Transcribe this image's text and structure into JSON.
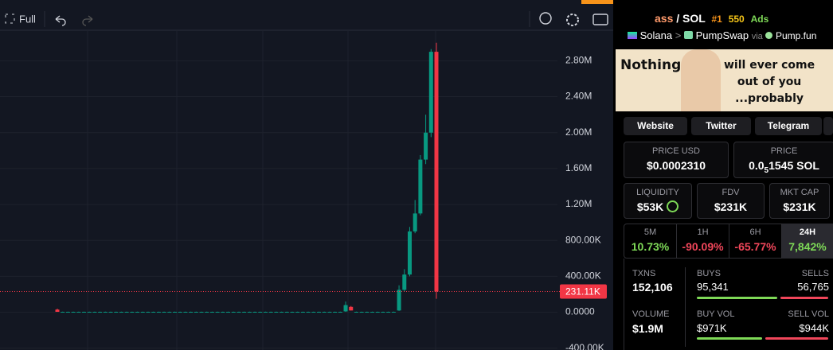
{
  "toolbar": {
    "full": "Full"
  },
  "chart_data": {
    "type": "candlestick",
    "ylim": [
      -420000,
      3140000
    ],
    "yticks": [
      {
        "value": 2800000,
        "label": "2.80M"
      },
      {
        "value": 2400000,
        "label": "2.40M"
      },
      {
        "value": 2000000,
        "label": "2.00M"
      },
      {
        "value": 1600000,
        "label": "1.60M"
      },
      {
        "value": 1200000,
        "label": "1.20M"
      },
      {
        "value": 800000,
        "label": "800.00K"
      },
      {
        "value": 400000,
        "label": "400.00K"
      },
      {
        "value": 0,
        "label": "0.0000"
      },
      {
        "value": -400000,
        "label": "-400.00K"
      }
    ],
    "up_color": "#089981",
    "down_color": "#f23645",
    "last_price": {
      "value": 231110,
      "label": "231.11K"
    },
    "candles": [
      [
        30000,
        40000,
        5000,
        5000
      ],
      [
        5000,
        7000,
        3000,
        5000
      ],
      [
        5000,
        7000,
        3000,
        5000
      ],
      [
        5000,
        7000,
        3000,
        5000
      ],
      [
        5000,
        7000,
        3000,
        5000
      ],
      [
        5000,
        7000,
        3000,
        5000
      ],
      [
        5000,
        7000,
        3000,
        5000
      ],
      [
        5000,
        7000,
        3000,
        5000
      ],
      [
        5000,
        7000,
        3000,
        5000
      ],
      [
        5000,
        7000,
        3000,
        5000
      ],
      [
        5000,
        7000,
        3000,
        5000
      ],
      [
        5000,
        7000,
        3000,
        5000
      ],
      [
        5000,
        7000,
        3000,
        5000
      ],
      [
        5000,
        7000,
        3000,
        5000
      ],
      [
        5000,
        7000,
        3000,
        5000
      ],
      [
        5000,
        7000,
        3000,
        5000
      ],
      [
        5000,
        7000,
        3000,
        5000
      ],
      [
        5000,
        7000,
        3000,
        5000
      ],
      [
        5000,
        7000,
        3000,
        5000
      ],
      [
        5000,
        7000,
        3000,
        5000
      ],
      [
        5000,
        7000,
        3000,
        5000
      ],
      [
        5000,
        7000,
        3000,
        5000
      ],
      [
        5000,
        7000,
        3000,
        5000
      ],
      [
        5000,
        7000,
        3000,
        5000
      ],
      [
        5000,
        7000,
        3000,
        5000
      ],
      [
        5000,
        7000,
        3000,
        5000
      ],
      [
        5000,
        7000,
        3000,
        5000
      ],
      [
        5000,
        7000,
        3000,
        5000
      ],
      [
        5000,
        7000,
        3000,
        5000
      ],
      [
        5000,
        7000,
        3000,
        5000
      ],
      [
        5000,
        7000,
        3000,
        5000
      ],
      [
        5000,
        7000,
        3000,
        5000
      ],
      [
        5000,
        7000,
        3000,
        5000
      ],
      [
        5000,
        7000,
        3000,
        5000
      ],
      [
        5000,
        7000,
        3000,
        5000
      ],
      [
        5000,
        7000,
        3000,
        5000
      ],
      [
        5000,
        7000,
        3000,
        5000
      ],
      [
        5000,
        7000,
        3000,
        5000
      ],
      [
        5000,
        7000,
        3000,
        5000
      ],
      [
        5000,
        7000,
        3000,
        5000
      ],
      [
        5000,
        7000,
        3000,
        5000
      ],
      [
        5000,
        7000,
        3000,
        5000
      ],
      [
        5000,
        7000,
        3000,
        5000
      ],
      [
        5000,
        7000,
        3000,
        5000
      ],
      [
        5000,
        7000,
        3000,
        5000
      ],
      [
        5000,
        7000,
        3000,
        5000
      ],
      [
        5000,
        7000,
        3000,
        5000
      ],
      [
        5000,
        7000,
        3000,
        5000
      ],
      [
        5000,
        7000,
        3000,
        5000
      ],
      [
        5000,
        7000,
        3000,
        5000
      ],
      [
        5000,
        7000,
        3000,
        5000
      ],
      [
        5000,
        7000,
        3000,
        5000
      ],
      [
        5000,
        7000,
        3000,
        5000
      ],
      [
        5000,
        7000,
        3000,
        5000
      ],
      [
        10000,
        120000,
        5000,
        80000
      ],
      [
        60000,
        70000,
        20000,
        20000
      ],
      [
        5000,
        7000,
        3000,
        5000
      ],
      [
        5000,
        7000,
        3000,
        5000
      ],
      [
        5000,
        7000,
        3000,
        5000
      ],
      [
        5000,
        7000,
        3000,
        5000
      ],
      [
        5000,
        7000,
        3000,
        5000
      ],
      [
        5000,
        7000,
        3000,
        5000
      ],
      [
        5000,
        7000,
        3000,
        5000
      ],
      [
        5000,
        7000,
        3000,
        5000
      ],
      [
        20000,
        300000,
        15000,
        250000
      ],
      [
        250000,
        480000,
        230000,
        420000
      ],
      [
        420000,
        950000,
        400000,
        900000
      ],
      [
        900000,
        1250000,
        880000,
        1100000
      ],
      [
        1100000,
        1750000,
        1080000,
        1700000
      ],
      [
        1700000,
        2200000,
        1650000,
        2000000
      ],
      [
        2000000,
        2930000,
        1950000,
        2900000
      ],
      [
        2900000,
        3000000,
        150000,
        231110
      ]
    ]
  },
  "pair": {
    "base": "ass",
    "sep": "/",
    "quote": "SOL",
    "rank": "#1",
    "boosts": "550",
    "ads": "Ads"
  },
  "route": {
    "chain": "Solana",
    "dex": "PumpSwap",
    "via": "via",
    "launchpad": "Pump.fun"
  },
  "banner": {
    "left": "Nothing",
    "right": [
      "will ever come",
      "out of you",
      "...probably"
    ]
  },
  "links": [
    "Website",
    "Twitter",
    "Telegram"
  ],
  "stats": {
    "price_usd": {
      "label": "PRICE USD",
      "value": "$0.0002310"
    },
    "price": {
      "label": "PRICE",
      "lead": "0.0",
      "zeros": "5",
      "tail": "1545 SOL"
    },
    "liquidity": {
      "label": "LIQUIDITY",
      "value": "$53K"
    },
    "fdv": {
      "label": "FDV",
      "value": "$231K"
    },
    "mkt_cap": {
      "label": "MKT CAP",
      "value": "$231K"
    }
  },
  "timeframes": [
    {
      "label": "5M",
      "value": "10.73%"
    },
    {
      "label": "1H",
      "value": "-90.09%"
    },
    {
      "label": "6H",
      "value": "-65.77%"
    },
    {
      "label": "24H",
      "value": "7,842%"
    }
  ],
  "activity": {
    "txns": {
      "label": "TXNS",
      "value": "152,106"
    },
    "buys": {
      "label": "BUYS",
      "value": "95,341"
    },
    "sells": {
      "label": "SELLS",
      "value": "56,765"
    },
    "volume": {
      "label": "VOLUME",
      "value": "$1.9M"
    },
    "buy_vol": {
      "label": "BUY VOL",
      "value": "$971K"
    },
    "sell_vol": {
      "label": "SELL VOL",
      "value": "$944K"
    }
  }
}
